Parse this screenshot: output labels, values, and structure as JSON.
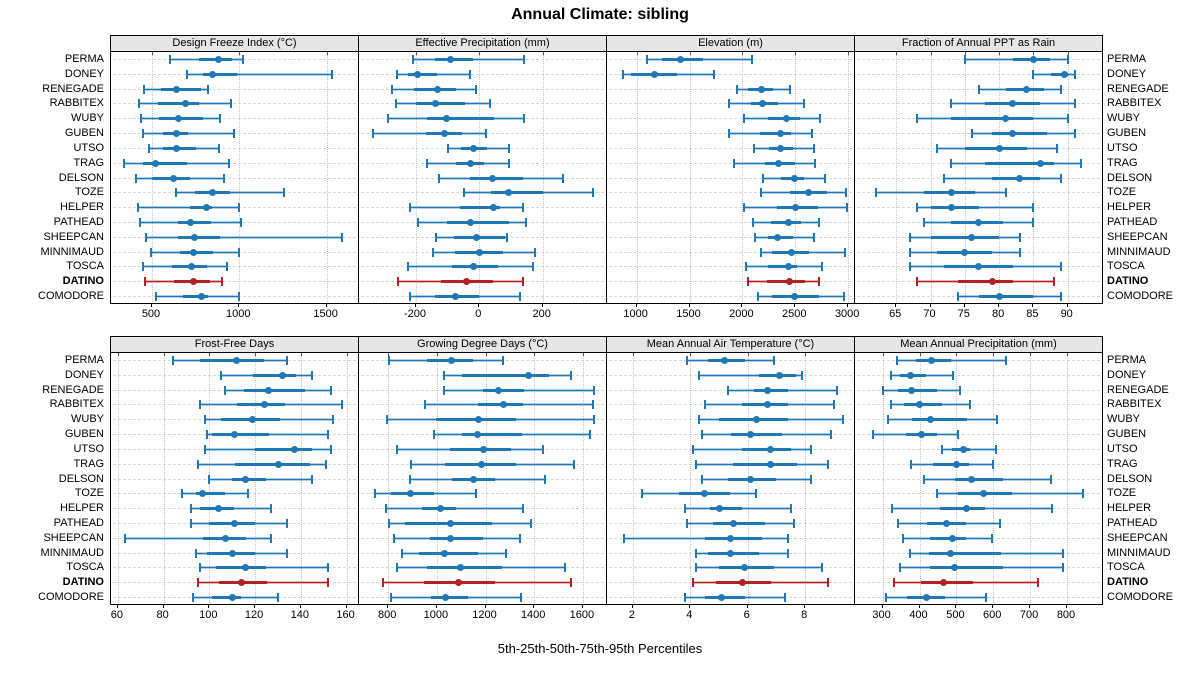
{
  "title": "Annual Climate: sibling",
  "caption": "5th-25th-50th-75th-95th Percentiles",
  "highlight_station": "DATINO",
  "colors": {
    "series_blue": "#1F77B4",
    "series_blue_light": "rgba(31,119,180,0.35)",
    "highlight_red": "#B22222",
    "highlight_red_light": "rgba(178,34,34,0.35)",
    "panel_header_bg": "#E6E6E6",
    "panel_border": "#000000",
    "gridline": "#C2C2C2",
    "row_guide": "#D8D8D8"
  },
  "chart_data": {
    "type": "dotplot-percentiles",
    "percentiles": [
      "5th",
      "25th",
      "50th",
      "75th",
      "95th"
    ],
    "legend_note": "thin line + caps = 5th-95th, thick band = 25th-75th, dot = median",
    "stations": [
      "PERMA",
      "DONEY",
      "RENEGADE",
      "RABBITEX",
      "WUBY",
      "GUBEN",
      "UTSO",
      "TRAG",
      "DELSON",
      "TOZE",
      "HELPER",
      "PATHEAD",
      "SHEEPCAN",
      "MINNIMAUD",
      "TOSCA",
      "DATINO",
      "COMODORE"
    ],
    "panels": [
      {
        "title": "Design Freeze Index (°C)",
        "grid_row": 1,
        "grid_col": 1,
        "xlim": [
          265,
          1680
        ],
        "ticks": [
          500,
          1000,
          1500
        ],
        "values": [
          [
            600,
            770,
            880,
            960,
            1020
          ],
          [
            700,
            790,
            845,
            990,
            1530
          ],
          [
            455,
            550,
            640,
            780,
            820
          ],
          [
            425,
            535,
            690,
            770,
            955
          ],
          [
            435,
            540,
            650,
            790,
            890
          ],
          [
            450,
            560,
            640,
            705,
            970
          ],
          [
            480,
            560,
            640,
            750,
            885
          ],
          [
            340,
            450,
            520,
            700,
            940
          ],
          [
            410,
            500,
            620,
            720,
            910
          ],
          [
            635,
            745,
            845,
            945,
            1255
          ],
          [
            420,
            715,
            810,
            845,
            1000
          ],
          [
            430,
            650,
            720,
            840,
            1010
          ],
          [
            465,
            650,
            745,
            890,
            1590
          ],
          [
            495,
            660,
            735,
            850,
            1000
          ],
          [
            450,
            615,
            725,
            815,
            930
          ],
          [
            460,
            625,
            735,
            830,
            900
          ],
          [
            520,
            675,
            785,
            820,
            1000
          ]
        ]
      },
      {
        "title": "Effective Precipitation (mm)",
        "grid_row": 1,
        "grid_col": 2,
        "xlim": [
          -380,
          400
        ],
        "ticks": [
          -200,
          0,
          200
        ],
        "values": [
          [
            -210,
            -140,
            -90,
            -20,
            140
          ],
          [
            -260,
            -225,
            -195,
            -133,
            -30
          ],
          [
            -275,
            -207,
            -133,
            -74,
            -10
          ],
          [
            -263,
            -199,
            -138,
            -45,
            35
          ],
          [
            -290,
            -165,
            -105,
            45,
            140
          ],
          [
            -335,
            -167,
            -110,
            -53,
            20
          ],
          [
            -100,
            -58,
            -20,
            23,
            95
          ],
          [
            -165,
            -75,
            -27,
            16,
            92
          ],
          [
            -128,
            -30,
            43,
            138,
            265
          ],
          [
            -48,
            37,
            93,
            200,
            360
          ],
          [
            -218,
            -62,
            45,
            64,
            138
          ],
          [
            -194,
            -101,
            -27,
            93,
            146
          ],
          [
            -138,
            -80,
            -9,
            80,
            88
          ],
          [
            -147,
            -78,
            0,
            74,
            175
          ],
          [
            -225,
            -87,
            -19,
            58,
            168
          ],
          [
            -257,
            -122,
            -42,
            42,
            138
          ],
          [
            -218,
            -140,
            -74,
            0,
            128
          ]
        ]
      },
      {
        "title": "Elevation (m)",
        "grid_row": 1,
        "grid_col": 3,
        "xlim": [
          720,
          3055
        ],
        "ticks": [
          1000,
          1500,
          2000,
          2500,
          3000
        ],
        "values": [
          [
            1095,
            1235,
            1415,
            1630,
            2090
          ],
          [
            875,
            950,
            1165,
            1380,
            1730
          ],
          [
            1945,
            2050,
            2180,
            2285,
            2450
          ],
          [
            1875,
            2085,
            2190,
            2340,
            2580
          ],
          [
            2015,
            2245,
            2420,
            2545,
            2735
          ],
          [
            1870,
            2165,
            2355,
            2460,
            2655
          ],
          [
            2110,
            2255,
            2355,
            2475,
            2675
          ],
          [
            1920,
            2215,
            2345,
            2500,
            2690
          ],
          [
            2190,
            2365,
            2490,
            2580,
            2780
          ],
          [
            2180,
            2450,
            2625,
            2800,
            2980
          ],
          [
            2015,
            2325,
            2500,
            2715,
            2990
          ],
          [
            2100,
            2270,
            2440,
            2555,
            2720
          ],
          [
            2115,
            2240,
            2335,
            2475,
            2680
          ],
          [
            2175,
            2280,
            2465,
            2625,
            2970
          ],
          [
            2030,
            2240,
            2435,
            2515,
            2750
          ],
          [
            2055,
            2230,
            2445,
            2595,
            2725
          ],
          [
            2150,
            2275,
            2490,
            2720,
            2960
          ]
        ]
      },
      {
        "title": "Fraction of Annual PPT as Rain",
        "grid_row": 1,
        "grid_col": 4,
        "xlim": [
          59,
          95
        ],
        "ticks": [
          65,
          70,
          75,
          80,
          85,
          90
        ],
        "values": [
          [
            75,
            82,
            85,
            87.5,
            90
          ],
          [
            85,
            87.5,
            89.5,
            90,
            91
          ],
          [
            77,
            81,
            84,
            86.5,
            89
          ],
          [
            73,
            78,
            82,
            86,
            91
          ],
          [
            68,
            73,
            81,
            85,
            90
          ],
          [
            76,
            79,
            82,
            87,
            91
          ],
          [
            71,
            75,
            80,
            84,
            88.5
          ],
          [
            73,
            78,
            86,
            88,
            92
          ],
          [
            72,
            79,
            83,
            86,
            89
          ],
          [
            62,
            69,
            73,
            76.5,
            81
          ],
          [
            68,
            70,
            73,
            77,
            85
          ],
          [
            69,
            73,
            77,
            80.5,
            85
          ],
          [
            67,
            70,
            76,
            80,
            83
          ],
          [
            67,
            71,
            75,
            79,
            83
          ],
          [
            67,
            72,
            77,
            82,
            89
          ],
          [
            68,
            74,
            79,
            82,
            88
          ],
          [
            74,
            77,
            80,
            85,
            89
          ]
        ]
      },
      {
        "title": "Frost-Free Days",
        "grid_row": 2,
        "grid_col": 1,
        "xlim": [
          57,
          165
        ],
        "ticks": [
          60,
          80,
          100,
          120,
          140,
          160
        ],
        "values": [
          [
            84,
            96,
            112,
            124,
            134
          ],
          [
            105,
            119,
            132,
            138,
            145
          ],
          [
            107,
            115,
            126,
            142,
            153
          ],
          [
            96,
            112,
            124,
            133,
            158
          ],
          [
            98,
            105,
            119,
            131,
            154
          ],
          [
            99,
            101,
            111,
            126,
            152
          ],
          [
            98,
            120,
            137,
            145,
            153
          ],
          [
            95,
            111,
            130,
            144,
            151
          ],
          [
            100,
            110,
            116,
            125,
            145
          ],
          [
            88,
            94,
            97,
            107,
            117
          ],
          [
            92,
            96,
            104,
            111,
            127
          ],
          [
            92,
            100,
            111,
            120,
            134
          ],
          [
            63,
            97,
            107,
            116,
            127
          ],
          [
            94,
            99,
            110,
            120,
            134
          ],
          [
            96,
            103,
            116,
            125,
            152
          ],
          [
            95,
            104,
            114,
            125,
            152
          ],
          [
            93,
            101,
            110,
            114,
            130
          ]
        ]
      },
      {
        "title": "Growing Degree Days (°C)",
        "grid_row": 2,
        "grid_col": 2,
        "xlim": [
          680,
          1695
        ],
        "ticks": [
          800,
          1000,
          1200,
          1400,
          1600
        ],
        "values": [
          [
            805,
            960,
            1060,
            1150,
            1270
          ],
          [
            1030,
            1105,
            1375,
            1460,
            1550
          ],
          [
            1030,
            1190,
            1255,
            1360,
            1645
          ],
          [
            950,
            1170,
            1275,
            1355,
            1640
          ],
          [
            795,
            995,
            1170,
            1325,
            1645
          ],
          [
            990,
            1105,
            1165,
            1350,
            1630
          ],
          [
            835,
            1055,
            1190,
            1305,
            1435
          ],
          [
            895,
            1035,
            1185,
            1325,
            1565
          ],
          [
            890,
            1060,
            1150,
            1240,
            1445
          ],
          [
            745,
            810,
            890,
            990,
            1160
          ],
          [
            790,
            940,
            1015,
            1080,
            1355
          ],
          [
            805,
            870,
            1055,
            1225,
            1385
          ],
          [
            825,
            970,
            1055,
            1190,
            1340
          ],
          [
            855,
            925,
            1030,
            1170,
            1285
          ],
          [
            835,
            960,
            1095,
            1270,
            1525
          ],
          [
            780,
            945,
            1090,
            1240,
            1550
          ],
          [
            810,
            975,
            1035,
            1130,
            1345
          ]
        ]
      },
      {
        "title": "Mean Annual Air Temperature (°C)",
        "grid_row": 2,
        "grid_col": 3,
        "xlim": [
          1.1,
          9.7
        ],
        "ticks": [
          2,
          4,
          6,
          8
        ],
        "values": [
          [
            3.9,
            4.6,
            5.2,
            5.9,
            6.9
          ],
          [
            4.3,
            6.4,
            7.1,
            7.7,
            7.9
          ],
          [
            5.3,
            6.2,
            6.7,
            7.4,
            9.1
          ],
          [
            4.5,
            5.8,
            6.7,
            7.4,
            9.0
          ],
          [
            4.3,
            5.0,
            6.3,
            7.4,
            9.3
          ],
          [
            4.4,
            5.4,
            6.1,
            7.2,
            8.9
          ],
          [
            4.1,
            5.8,
            6.8,
            7.5,
            8.2
          ],
          [
            4.2,
            5.5,
            6.8,
            7.7,
            8.8
          ],
          [
            4.4,
            5.3,
            6.1,
            7.0,
            8.2
          ],
          [
            2.3,
            3.6,
            4.5,
            5.4,
            6.3
          ],
          [
            3.8,
            4.7,
            5.0,
            5.8,
            7.5
          ],
          [
            3.9,
            4.8,
            5.5,
            6.6,
            7.6
          ],
          [
            1.7,
            4.5,
            5.4,
            6.5,
            7.4
          ],
          [
            4.2,
            4.6,
            5.4,
            6.4,
            7.4
          ],
          [
            4.2,
            5.0,
            5.9,
            6.9,
            8.6
          ],
          [
            4.1,
            4.9,
            5.8,
            6.8,
            8.8
          ],
          [
            3.8,
            4.5,
            5.1,
            5.9,
            7.3
          ]
        ]
      },
      {
        "title": "Mean Annual Precipitation (mm)",
        "grid_row": 2,
        "grid_col": 4,
        "xlim": [
          225,
          895
        ],
        "ticks": [
          300,
          400,
          500,
          600,
          700,
          800
        ],
        "values": [
          [
            340,
            390,
            433,
            485,
            635
          ],
          [
            322,
            347,
            375,
            418,
            490
          ],
          [
            302,
            342,
            377,
            449,
            511
          ],
          [
            322,
            357,
            401,
            462,
            537
          ],
          [
            315,
            380,
            429,
            530,
            610
          ],
          [
            274,
            364,
            405,
            449,
            505
          ],
          [
            462,
            489,
            518,
            537,
            607
          ],
          [
            376,
            437,
            500,
            535,
            598
          ],
          [
            412,
            496,
            541,
            626,
            756
          ],
          [
            448,
            504,
            573,
            650,
            843
          ],
          [
            324,
            455,
            528,
            578,
            760
          ],
          [
            341,
            421,
            472,
            525,
            618
          ],
          [
            354,
            429,
            490,
            526,
            597
          ],
          [
            375,
            425,
            485,
            620,
            790
          ],
          [
            348,
            429,
            495,
            626,
            790
          ],
          [
            330,
            405,
            465,
            545,
            720
          ],
          [
            309,
            365,
            420,
            470,
            580
          ]
        ]
      }
    ]
  }
}
